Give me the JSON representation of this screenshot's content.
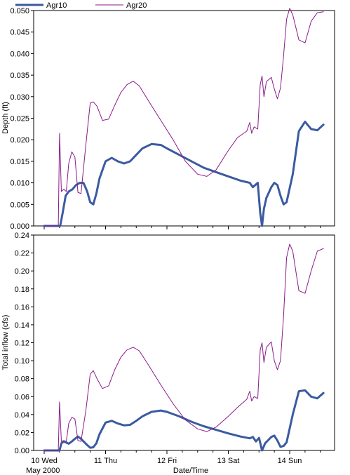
{
  "legend": [
    {
      "name": "Agr10",
      "color": "#3a5ba0"
    },
    {
      "name": "Agr20",
      "color": "#8b1a8b"
    }
  ],
  "xaxis": {
    "label": "Date/Time",
    "ticks": [
      {
        "label": "10 Wed",
        "day": 0
      },
      {
        "label": "11 Thu",
        "day": 1
      },
      {
        "label": "12 Fri",
        "day": 2
      },
      {
        "label": "13 Sat",
        "day": 3
      },
      {
        "label": "14 Sun",
        "day": 4
      }
    ],
    "sublabel": "May 2000",
    "range": [
      0,
      4.7
    ]
  },
  "chart_data": [
    {
      "type": "line",
      "ylabel": "Depth (ft)",
      "ylim": [
        0,
        0.05
      ],
      "yticks": [
        "0.000",
        "0.005",
        "0.010",
        "0.015",
        "0.020",
        "0.025",
        "0.030",
        "0.035",
        "0.040",
        "0.045",
        "0.050"
      ],
      "series": [
        {
          "name": "Agr10",
          "color": "#3a5ba0",
          "x": [
            0.0,
            0.22,
            0.26,
            0.3,
            0.35,
            0.4,
            0.46,
            0.52,
            0.58,
            0.64,
            0.7,
            0.75,
            0.8,
            0.85,
            0.9,
            1.0,
            1.1,
            1.2,
            1.3,
            1.4,
            1.5,
            1.6,
            1.75,
            1.9,
            2.0,
            2.2,
            2.4,
            2.6,
            2.8,
            3.0,
            3.2,
            3.35,
            3.4,
            3.44,
            3.48,
            3.52,
            3.55,
            3.58,
            3.62,
            3.7,
            3.75,
            3.8,
            3.85,
            3.9,
            3.95,
            4.05,
            4.15,
            4.25,
            4.35,
            4.45,
            4.55
          ],
          "y": [
            0.0,
            0.0,
            0.0,
            0.003,
            0.007,
            0.008,
            0.0085,
            0.0095,
            0.01,
            0.01,
            0.008,
            0.0055,
            0.005,
            0.0075,
            0.011,
            0.015,
            0.0158,
            0.015,
            0.0145,
            0.015,
            0.0165,
            0.018,
            0.019,
            0.0188,
            0.018,
            0.0165,
            0.015,
            0.0135,
            0.0125,
            0.0115,
            0.0105,
            0.01,
            0.009,
            0.0095,
            0.01,
            0.003,
            0.0,
            0.004,
            0.0065,
            0.009,
            0.01,
            0.0095,
            0.007,
            0.005,
            0.0055,
            0.012,
            0.022,
            0.0242,
            0.0225,
            0.0222,
            0.0235
          ]
        },
        {
          "name": "Agr20",
          "color": "#8b1a8b",
          "x": [
            0.0,
            0.2,
            0.23,
            0.25,
            0.28,
            0.32,
            0.36,
            0.4,
            0.45,
            0.5,
            0.55,
            0.6,
            0.68,
            0.75,
            0.8,
            0.86,
            0.95,
            1.05,
            1.15,
            1.25,
            1.35,
            1.45,
            1.55,
            1.7,
            1.9,
            2.1,
            2.3,
            2.5,
            2.65,
            2.8,
            3.0,
            3.15,
            3.3,
            3.35,
            3.38,
            3.42,
            3.48,
            3.52,
            3.55,
            3.58,
            3.62,
            3.7,
            3.75,
            3.8,
            3.85,
            3.9,
            3.95,
            4.0,
            4.05,
            4.15,
            4.25,
            4.35,
            4.45,
            4.55
          ],
          "y": [
            0.0,
            0.0,
            0.0,
            0.0215,
            0.008,
            0.0085,
            0.008,
            0.0145,
            0.0172,
            0.016,
            0.0078,
            0.0075,
            0.019,
            0.0285,
            0.0288,
            0.0278,
            0.0245,
            0.0248,
            0.028,
            0.031,
            0.0328,
            0.0336,
            0.0325,
            0.029,
            0.0245,
            0.02,
            0.015,
            0.012,
            0.0115,
            0.013,
            0.0175,
            0.0205,
            0.022,
            0.024,
            0.0215,
            0.023,
            0.0225,
            0.0328,
            0.0348,
            0.03,
            0.0335,
            0.0345,
            0.0318,
            0.0295,
            0.032,
            0.0395,
            0.048,
            0.0505,
            0.049,
            0.0432,
            0.0425,
            0.0475,
            0.0495,
            0.0497
          ]
        }
      ]
    },
    {
      "type": "line",
      "ylabel": "Total inflow (cfs)",
      "ylim": [
        0,
        0.24
      ],
      "yticks": [
        "0.00",
        "0.02",
        "0.04",
        "0.06",
        "0.08",
        "0.10",
        "0.12",
        "0.14",
        "0.16",
        "0.18",
        "0.20",
        "0.22",
        "0.24"
      ],
      "series": [
        {
          "name": "Agr10",
          "color": "#3a5ba0",
          "x": [
            0.0,
            0.22,
            0.25,
            0.28,
            0.32,
            0.4,
            0.45,
            0.5,
            0.55,
            0.6,
            0.7,
            0.75,
            0.8,
            0.85,
            0.9,
            1.0,
            1.1,
            1.2,
            1.3,
            1.4,
            1.5,
            1.6,
            1.75,
            1.9,
            2.0,
            2.2,
            2.4,
            2.6,
            2.8,
            3.0,
            3.2,
            3.35,
            3.4,
            3.45,
            3.5,
            3.55,
            3.6,
            3.7,
            3.75,
            3.8,
            3.85,
            3.9,
            3.95,
            4.05,
            4.15,
            4.25,
            4.35,
            4.45,
            4.55
          ],
          "y": [
            0.0,
            0.0,
            0.0,
            0.008,
            0.01,
            0.0075,
            0.01,
            0.013,
            0.0155,
            0.013,
            0.006,
            0.003,
            0.0035,
            0.008,
            0.018,
            0.031,
            0.033,
            0.03,
            0.028,
            0.0285,
            0.033,
            0.038,
            0.043,
            0.0445,
            0.043,
            0.038,
            0.032,
            0.027,
            0.023,
            0.019,
            0.0155,
            0.0135,
            0.015,
            0.01,
            0.014,
            0.0,
            0.008,
            0.015,
            0.0165,
            0.011,
            0.004,
            0.005,
            0.009,
            0.04,
            0.066,
            0.067,
            0.06,
            0.058,
            0.064
          ]
        },
        {
          "name": "Agr20",
          "color": "#8b1a8b",
          "x": [
            0.0,
            0.2,
            0.23,
            0.25,
            0.28,
            0.32,
            0.36,
            0.4,
            0.45,
            0.5,
            0.55,
            0.6,
            0.68,
            0.75,
            0.8,
            0.86,
            0.95,
            1.05,
            1.15,
            1.25,
            1.35,
            1.45,
            1.55,
            1.7,
            1.9,
            2.1,
            2.3,
            2.5,
            2.65,
            2.8,
            3.0,
            3.15,
            3.3,
            3.35,
            3.38,
            3.42,
            3.48,
            3.52,
            3.55,
            3.58,
            3.62,
            3.7,
            3.75,
            3.8,
            3.85,
            3.9,
            3.95,
            4.0,
            4.05,
            4.15,
            4.25,
            4.35,
            4.45,
            4.55
          ],
          "y": [
            0.0,
            0.0,
            0.0,
            0.054,
            0.01,
            0.011,
            0.01,
            0.03,
            0.037,
            0.035,
            0.011,
            0.01,
            0.045,
            0.085,
            0.089,
            0.08,
            0.069,
            0.072,
            0.09,
            0.104,
            0.112,
            0.115,
            0.111,
            0.095,
            0.073,
            0.052,
            0.034,
            0.024,
            0.021,
            0.026,
            0.038,
            0.048,
            0.057,
            0.066,
            0.055,
            0.06,
            0.058,
            0.112,
            0.12,
            0.098,
            0.115,
            0.121,
            0.1,
            0.09,
            0.1,
            0.15,
            0.215,
            0.23,
            0.222,
            0.178,
            0.175,
            0.2,
            0.222,
            0.225
          ]
        }
      ]
    }
  ]
}
